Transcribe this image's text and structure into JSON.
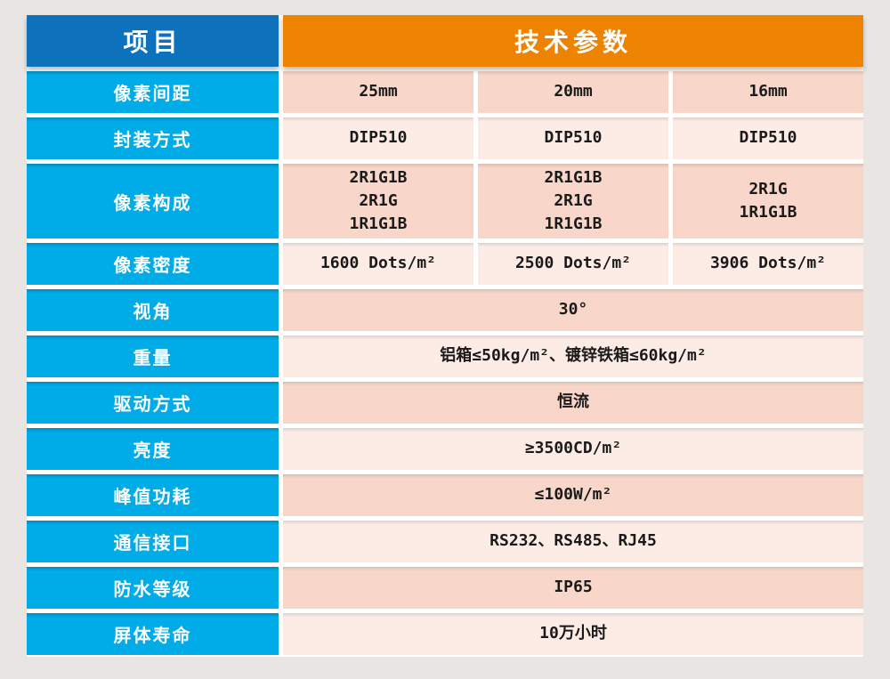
{
  "table": {
    "header": {
      "item": "项目",
      "params": "技术参数"
    },
    "rows": [
      {
        "label": "像素间距",
        "cells": [
          "25mm",
          "20mm",
          "16mm"
        ]
      },
      {
        "label": "封装方式",
        "cells": [
          "DIP510",
          "DIP510",
          "DIP510"
        ]
      },
      {
        "label": "像素构成",
        "cells": [
          "2R1G1B\n2R1G\n1R1G1B",
          "2R1G1B\n2R1G\n1R1G1B",
          "2R1G\n1R1G1B"
        ]
      },
      {
        "label": "像素密度",
        "cells": [
          "1600 Dots/m²",
          "2500 Dots/m²",
          "3906 Dots/m²"
        ]
      },
      {
        "label": "视角",
        "value": "30°"
      },
      {
        "label": "重量",
        "value": "铝箱≤50kg/m²、镀锌铁箱≤60kg/m²"
      },
      {
        "label": "驱动方式",
        "value": "恒流"
      },
      {
        "label": "亮度",
        "value": "≥3500CD/m²"
      },
      {
        "label": "峰值功耗",
        "value": "≤100W/m²"
      },
      {
        "label": "通信接口",
        "value": "RS232、RS485、RJ45"
      },
      {
        "label": "防水等级",
        "value": "IP65"
      },
      {
        "label": "屏体寿命",
        "value": "10万小时"
      }
    ]
  },
  "colors": {
    "header_blue": "#0e71bb",
    "header_orange": "#ee8302",
    "label_cyan": "#00ace8",
    "value_pink_dark": "#f8d6ca",
    "value_pink_light": "#fdece6",
    "page_background": "#e8e5e2",
    "divider_white": "#ffffff",
    "value_text": "#1a1a1a"
  }
}
